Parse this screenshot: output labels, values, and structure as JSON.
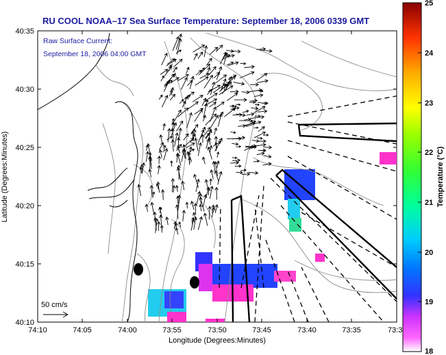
{
  "title": "RU COOL  NOAA–17  Sea Surface Temperature:  September 18, 2006 0339 GMT",
  "subtitle_line1": "Raw Surface Current:",
  "subtitle_line2": "September 18, 2006 04:00 GMT",
  "scale_label": "50 cm/s",
  "x_axis_label": "Longitude (Degrees:Minutes)",
  "y_axis_label": "Latitude (Degrees:Minutes)",
  "x_ticks": [
    "74:10",
    "74:05",
    "74:00",
    "73:55",
    "73:50",
    "73:45",
    "73:40",
    "73:35",
    "73:3"
  ],
  "y_ticks": [
    "40:35",
    "40:30",
    "40:25",
    "40:20",
    "40:15",
    "40:10"
  ],
  "colorbar": {
    "label": "Temperature (°C)",
    "ticks": [
      "25",
      "24",
      "23",
      "22",
      "21",
      "20",
      "19",
      "18"
    ],
    "range": [
      18,
      25
    ]
  },
  "map": {
    "extent_lon": [
      "74:10 W",
      "73:30 W"
    ],
    "extent_lat": [
      "40:10 N",
      "40:35 N"
    ],
    "sst_patches": [
      {
        "color": "#ff33cc",
        "temp": 18
      },
      {
        "color": "#3333ff",
        "temp": 19
      },
      {
        "color": "#00ccee",
        "temp": 19.8
      },
      {
        "color": "#33dd99",
        "temp": 20.5
      }
    ],
    "colors": {
      "arrows": "#000000",
      "contours": "#888888",
      "coast": "#000000",
      "title": "#1a1aa0"
    }
  }
}
